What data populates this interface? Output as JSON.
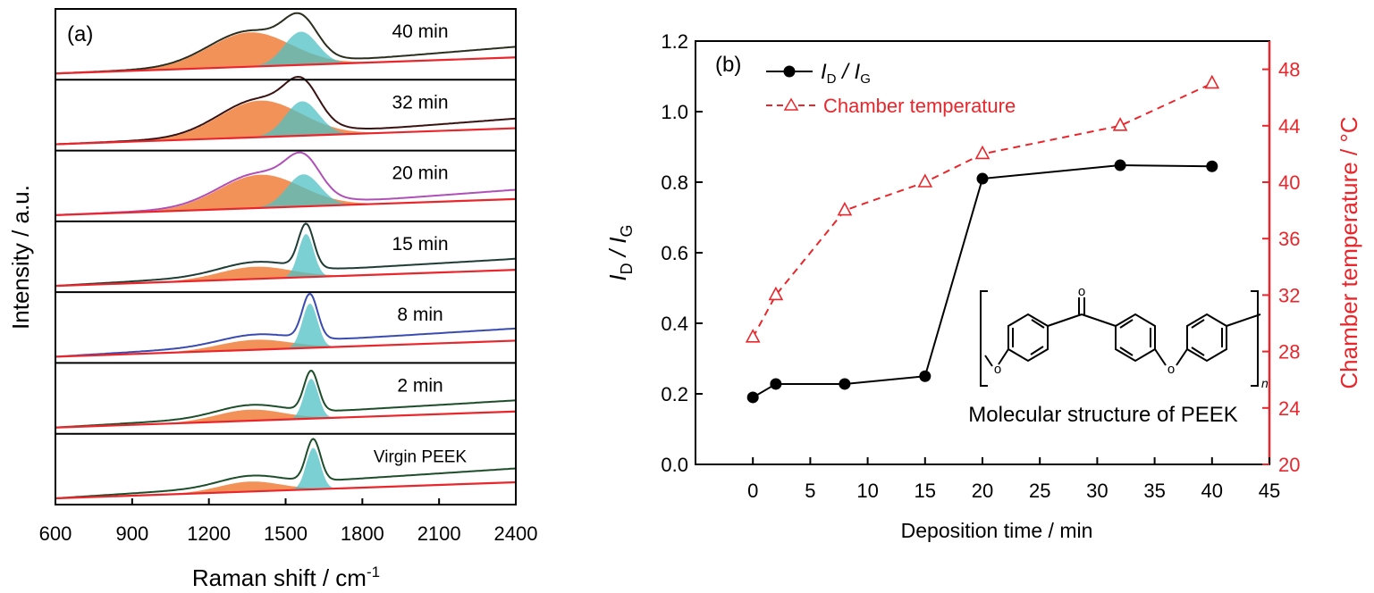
{
  "chart_data": [
    {
      "type": "line",
      "panel_label": "(a)",
      "xlabel": "Raman shift / cm",
      "xlabel_sup": "-1",
      "ylabel": "Intensity / a.u.",
      "xlim": [
        600,
        2400
      ],
      "xticks": [
        600,
        900,
        1200,
        1500,
        1800,
        2100,
        2400
      ],
      "grid": false,
      "colors": {
        "d_band": "#f07f3c",
        "g_band": "#4fc0c4",
        "baseline": "#e8262b"
      },
      "series": [
        {
          "name": "40 min",
          "color": "#2b2e1f",
          "d_center": 1360,
          "d_height": 0.62,
          "d_width": 160,
          "g_center": 1560,
          "g_height": 0.6,
          "g_width": 65,
          "slope": 0.07,
          "tail": 0.35
        },
        {
          "name": "32 min",
          "color": "#3a1212",
          "d_center": 1400,
          "d_height": 0.66,
          "d_width": 160,
          "g_center": 1565,
          "g_height": 0.62,
          "g_width": 65,
          "slope": 0.07,
          "tail": 0.3
        },
        {
          "name": "20 min",
          "color": "#b04fb8",
          "d_center": 1400,
          "d_height": 0.6,
          "d_width": 160,
          "g_center": 1570,
          "g_height": 0.58,
          "g_width": 65,
          "slope": 0.07,
          "tail": 0.28
        },
        {
          "name": "15 min",
          "color": "#1f3d35",
          "d_center": 1380,
          "d_height": 0.22,
          "d_width": 140,
          "g_center": 1580,
          "g_height": 0.78,
          "g_width": 30,
          "slope": 0.2,
          "tail": 0.0
        },
        {
          "name": "8 min",
          "color": "#3a4bb0",
          "d_center": 1380,
          "d_height": 0.18,
          "d_width": 140,
          "g_center": 1595,
          "g_height": 0.8,
          "g_width": 30,
          "slope": 0.22,
          "tail": 0.0
        },
        {
          "name": "2 min",
          "color": "#1d4d2a",
          "d_center": 1360,
          "d_height": 0.2,
          "d_width": 130,
          "g_center": 1600,
          "g_height": 0.72,
          "g_width": 28,
          "slope": 0.2,
          "tail": 0.0
        },
        {
          "name": "Virgin PEEK",
          "color": "#1d4d2a",
          "d_center": 1360,
          "d_height": 0.18,
          "d_width": 120,
          "g_center": 1608,
          "g_height": 0.75,
          "g_width": 28,
          "slope": 0.25,
          "tail": 0.0
        }
      ]
    },
    {
      "type": "line",
      "panel_label": "(b)",
      "xlabel": "Deposition time / min",
      "ylabel_left": "I",
      "ylabel_left_sub": "D",
      "ylabel_left_mid": " / I",
      "ylabel_left_sub2": "G",
      "ylabel_right": "Chamber temperature / °C",
      "xlim": [
        -5,
        45
      ],
      "xticks": [
        0,
        5,
        10,
        15,
        20,
        25,
        30,
        35,
        40,
        45
      ],
      "ylim_left": [
        0.0,
        1.2
      ],
      "yticks_left": [
        "0.0",
        "0.2",
        "0.4",
        "0.6",
        "0.8",
        "1.0",
        "1.2"
      ],
      "ylim_right": [
        20,
        50
      ],
      "yticks_right": [
        "20",
        "24",
        "28",
        "32",
        "36",
        "40",
        "44",
        "48"
      ],
      "legend_position": "top-left",
      "grid": false,
      "series": [
        {
          "name": "I",
          "name_sub": "D",
          "name_mid": " / I",
          "name_sub2": "G",
          "axis": "left",
          "color": "#000000",
          "marker": "circle",
          "style": "solid",
          "x": [
            0,
            2,
            8,
            15,
            20,
            32,
            40
          ],
          "y": [
            0.19,
            0.228,
            0.228,
            0.25,
            0.81,
            0.848,
            0.845
          ]
        },
        {
          "name": "Chamber temperature",
          "axis": "right",
          "color": "#e8262b",
          "marker": "triangle-open",
          "style": "dashed",
          "x": [
            0,
            2,
            8,
            15,
            20,
            32,
            40
          ],
          "y": [
            29,
            32,
            38,
            40,
            42,
            44,
            47
          ]
        }
      ],
      "annotation": {
        "text": "Molecular structure of PEEK",
        "subscript": "n"
      }
    }
  ]
}
